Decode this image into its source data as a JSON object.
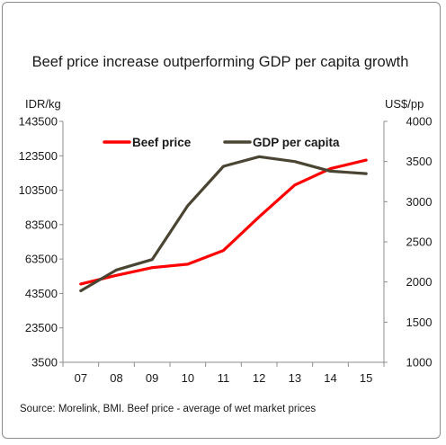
{
  "chart_data": {
    "type": "line",
    "title": "Beef price increase outperforming GDP per capita growth",
    "categories": [
      "07",
      "08",
      "09",
      "10",
      "11",
      "12",
      "13",
      "14",
      "15"
    ],
    "y_left": {
      "label": "IDR/kg",
      "range": [
        3500,
        143500
      ],
      "ticks": [
        "3500",
        "23500",
        "43500",
        "63500",
        "83500",
        "103500",
        "123500",
        "143500"
      ]
    },
    "y_right": {
      "label": "US$/pp",
      "range": [
        1000,
        4000
      ],
      "ticks": [
        "1000",
        "1500",
        "2000",
        "2500",
        "3000",
        "3500",
        "4000"
      ]
    },
    "series": [
      {
        "name": "Beef price",
        "axis": "left",
        "color": "#ff0000",
        "values": [
          49000,
          54000,
          58500,
          60500,
          68500,
          88000,
          106500,
          116000,
          121000
        ]
      },
      {
        "name": "GDP per capita",
        "axis": "right",
        "color": "#4a4532",
        "values": [
          1890,
          2150,
          2280,
          2950,
          3440,
          3560,
          3500,
          3380,
          3350
        ]
      }
    ],
    "legend_position": "top",
    "grid": false,
    "source": "Source:  Morelink, BMI. Beef  price - average of wet market prices"
  }
}
